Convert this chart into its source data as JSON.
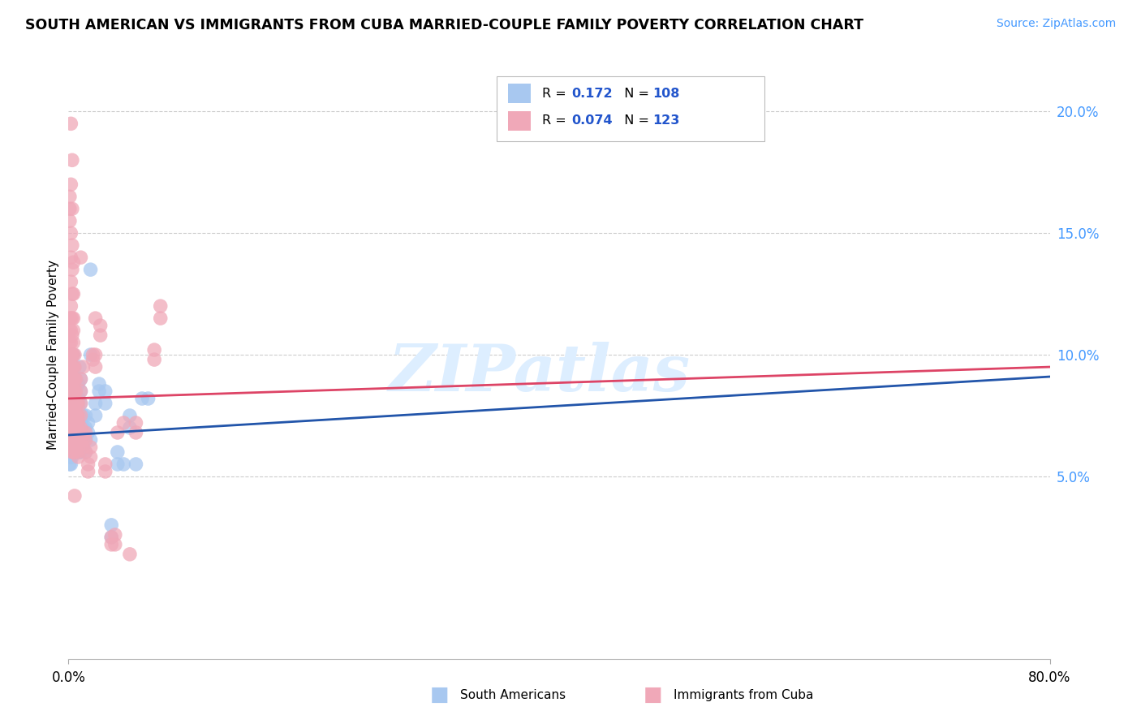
{
  "title": "SOUTH AMERICAN VS IMMIGRANTS FROM CUBA MARRIED-COUPLE FAMILY POVERTY CORRELATION CHART",
  "source": "Source: ZipAtlas.com",
  "ylabel": "Married-Couple Family Poverty",
  "yticks": [
    0.05,
    0.1,
    0.15,
    0.2
  ],
  "ytick_labels": [
    "5.0%",
    "10.0%",
    "15.0%",
    "20.0%"
  ],
  "xmin": 0.0,
  "xmax": 0.8,
  "ymin": -0.025,
  "ymax": 0.225,
  "legend_blue_r": "0.172",
  "legend_blue_n": "108",
  "legend_pink_r": "0.074",
  "legend_pink_n": "123",
  "blue_color": "#a8c8f0",
  "pink_color": "#f0a8b8",
  "blue_line_color": "#2255aa",
  "pink_line_color": "#dd4466",
  "r_value_color": "#2255cc",
  "watermark_color": "#ddeeff",
  "blue_scatter": [
    [
      0.001,
      0.063
    ],
    [
      0.001,
      0.06
    ],
    [
      0.001,
      0.058
    ],
    [
      0.001,
      0.065
    ],
    [
      0.001,
      0.055
    ],
    [
      0.001,
      0.068
    ],
    [
      0.001,
      0.07
    ],
    [
      0.002,
      0.062
    ],
    [
      0.002,
      0.065
    ],
    [
      0.002,
      0.068
    ],
    [
      0.002,
      0.07
    ],
    [
      0.002,
      0.075
    ],
    [
      0.002,
      0.058
    ],
    [
      0.002,
      0.06
    ],
    [
      0.002,
      0.055
    ],
    [
      0.003,
      0.06
    ],
    [
      0.003,
      0.062
    ],
    [
      0.003,
      0.065
    ],
    [
      0.003,
      0.068
    ],
    [
      0.003,
      0.07
    ],
    [
      0.003,
      0.072
    ],
    [
      0.003,
      0.075
    ],
    [
      0.003,
      0.078
    ],
    [
      0.003,
      0.08
    ],
    [
      0.003,
      0.085
    ],
    [
      0.003,
      0.058
    ],
    [
      0.004,
      0.06
    ],
    [
      0.004,
      0.062
    ],
    [
      0.004,
      0.065
    ],
    [
      0.004,
      0.068
    ],
    [
      0.004,
      0.07
    ],
    [
      0.004,
      0.072
    ],
    [
      0.004,
      0.075
    ],
    [
      0.004,
      0.078
    ],
    [
      0.004,
      0.08
    ],
    [
      0.004,
      0.085
    ],
    [
      0.004,
      0.088
    ],
    [
      0.004,
      0.09
    ],
    [
      0.004,
      0.095
    ],
    [
      0.004,
      0.1
    ],
    [
      0.005,
      0.06
    ],
    [
      0.005,
      0.063
    ],
    [
      0.005,
      0.065
    ],
    [
      0.005,
      0.068
    ],
    [
      0.005,
      0.07
    ],
    [
      0.005,
      0.072
    ],
    [
      0.005,
      0.075
    ],
    [
      0.005,
      0.078
    ],
    [
      0.005,
      0.08
    ],
    [
      0.005,
      0.085
    ],
    [
      0.006,
      0.062
    ],
    [
      0.006,
      0.065
    ],
    [
      0.006,
      0.068
    ],
    [
      0.006,
      0.07
    ],
    [
      0.006,
      0.072
    ],
    [
      0.006,
      0.075
    ],
    [
      0.006,
      0.078
    ],
    [
      0.006,
      0.08
    ],
    [
      0.006,
      0.085
    ],
    [
      0.006,
      0.09
    ],
    [
      0.007,
      0.06
    ],
    [
      0.007,
      0.062
    ],
    [
      0.007,
      0.065
    ],
    [
      0.007,
      0.07
    ],
    [
      0.007,
      0.075
    ],
    [
      0.007,
      0.08
    ],
    [
      0.008,
      0.06
    ],
    [
      0.008,
      0.065
    ],
    [
      0.008,
      0.068
    ],
    [
      0.008,
      0.072
    ],
    [
      0.008,
      0.075
    ],
    [
      0.008,
      0.078
    ],
    [
      0.008,
      0.082
    ],
    [
      0.008,
      0.088
    ],
    [
      0.009,
      0.06
    ],
    [
      0.009,
      0.065
    ],
    [
      0.009,
      0.07
    ],
    [
      0.009,
      0.095
    ],
    [
      0.01,
      0.06
    ],
    [
      0.01,
      0.065
    ],
    [
      0.01,
      0.07
    ],
    [
      0.01,
      0.075
    ],
    [
      0.01,
      0.08
    ],
    [
      0.01,
      0.085
    ],
    [
      0.01,
      0.09
    ],
    [
      0.012,
      0.065
    ],
    [
      0.012,
      0.07
    ],
    [
      0.012,
      0.075
    ],
    [
      0.014,
      0.06
    ],
    [
      0.014,
      0.065
    ],
    [
      0.014,
      0.07
    ],
    [
      0.014,
      0.075
    ],
    [
      0.016,
      0.068
    ],
    [
      0.016,
      0.072
    ],
    [
      0.018,
      0.065
    ],
    [
      0.018,
      0.1
    ],
    [
      0.018,
      0.135
    ],
    [
      0.022,
      0.075
    ],
    [
      0.022,
      0.08
    ],
    [
      0.025,
      0.085
    ],
    [
      0.025,
      0.088
    ],
    [
      0.03,
      0.08
    ],
    [
      0.03,
      0.085
    ],
    [
      0.035,
      0.03
    ],
    [
      0.035,
      0.025
    ],
    [
      0.04,
      0.055
    ],
    [
      0.04,
      0.06
    ],
    [
      0.045,
      0.055
    ],
    [
      0.05,
      0.07
    ],
    [
      0.05,
      0.075
    ],
    [
      0.055,
      0.055
    ],
    [
      0.06,
      0.082
    ],
    [
      0.065,
      0.082
    ]
  ],
  "pink_scatter": [
    [
      0.001,
      0.068
    ],
    [
      0.001,
      0.072
    ],
    [
      0.001,
      0.075
    ],
    [
      0.001,
      0.08
    ],
    [
      0.001,
      0.085
    ],
    [
      0.001,
      0.088
    ],
    [
      0.001,
      0.092
    ],
    [
      0.001,
      0.095
    ],
    [
      0.001,
      0.1
    ],
    [
      0.001,
      0.105
    ],
    [
      0.001,
      0.11
    ],
    [
      0.001,
      0.115
    ],
    [
      0.001,
      0.155
    ],
    [
      0.001,
      0.16
    ],
    [
      0.001,
      0.165
    ],
    [
      0.002,
      0.065
    ],
    [
      0.002,
      0.068
    ],
    [
      0.002,
      0.072
    ],
    [
      0.002,
      0.075
    ],
    [
      0.002,
      0.08
    ],
    [
      0.002,
      0.085
    ],
    [
      0.002,
      0.088
    ],
    [
      0.002,
      0.092
    ],
    [
      0.002,
      0.095
    ],
    [
      0.002,
      0.1
    ],
    [
      0.002,
      0.105
    ],
    [
      0.002,
      0.11
    ],
    [
      0.002,
      0.115
    ],
    [
      0.002,
      0.12
    ],
    [
      0.002,
      0.13
    ],
    [
      0.002,
      0.14
    ],
    [
      0.002,
      0.15
    ],
    [
      0.002,
      0.17
    ],
    [
      0.002,
      0.195
    ],
    [
      0.003,
      0.06
    ],
    [
      0.003,
      0.065
    ],
    [
      0.003,
      0.068
    ],
    [
      0.003,
      0.072
    ],
    [
      0.003,
      0.075
    ],
    [
      0.003,
      0.08
    ],
    [
      0.003,
      0.085
    ],
    [
      0.003,
      0.09
    ],
    [
      0.003,
      0.095
    ],
    [
      0.003,
      0.1
    ],
    [
      0.003,
      0.108
    ],
    [
      0.003,
      0.115
    ],
    [
      0.003,
      0.125
    ],
    [
      0.003,
      0.135
    ],
    [
      0.003,
      0.145
    ],
    [
      0.003,
      0.16
    ],
    [
      0.003,
      0.18
    ],
    [
      0.004,
      0.06
    ],
    [
      0.004,
      0.063
    ],
    [
      0.004,
      0.068
    ],
    [
      0.004,
      0.072
    ],
    [
      0.004,
      0.075
    ],
    [
      0.004,
      0.08
    ],
    [
      0.004,
      0.085
    ],
    [
      0.004,
      0.09
    ],
    [
      0.004,
      0.095
    ],
    [
      0.004,
      0.1
    ],
    [
      0.004,
      0.105
    ],
    [
      0.004,
      0.11
    ],
    [
      0.004,
      0.115
    ],
    [
      0.004,
      0.125
    ],
    [
      0.004,
      0.138
    ],
    [
      0.005,
      0.06
    ],
    [
      0.005,
      0.065
    ],
    [
      0.005,
      0.068
    ],
    [
      0.005,
      0.072
    ],
    [
      0.005,
      0.075
    ],
    [
      0.005,
      0.08
    ],
    [
      0.005,
      0.085
    ],
    [
      0.005,
      0.09
    ],
    [
      0.005,
      0.095
    ],
    [
      0.005,
      0.1
    ],
    [
      0.005,
      0.042
    ],
    [
      0.006,
      0.062
    ],
    [
      0.006,
      0.065
    ],
    [
      0.006,
      0.068
    ],
    [
      0.006,
      0.072
    ],
    [
      0.006,
      0.075
    ],
    [
      0.006,
      0.08
    ],
    [
      0.006,
      0.085
    ],
    [
      0.006,
      0.09
    ],
    [
      0.007,
      0.06
    ],
    [
      0.007,
      0.065
    ],
    [
      0.007,
      0.068
    ],
    [
      0.007,
      0.072
    ],
    [
      0.007,
      0.075
    ],
    [
      0.007,
      0.08
    ],
    [
      0.008,
      0.058
    ],
    [
      0.008,
      0.062
    ],
    [
      0.008,
      0.065
    ],
    [
      0.008,
      0.068
    ],
    [
      0.008,
      0.072
    ],
    [
      0.008,
      0.075
    ],
    [
      0.008,
      0.08
    ],
    [
      0.01,
      0.065
    ],
    [
      0.01,
      0.07
    ],
    [
      0.01,
      0.075
    ],
    [
      0.01,
      0.08
    ],
    [
      0.01,
      0.085
    ],
    [
      0.01,
      0.09
    ],
    [
      0.01,
      0.14
    ],
    [
      0.012,
      0.062
    ],
    [
      0.012,
      0.065
    ],
    [
      0.012,
      0.068
    ],
    [
      0.012,
      0.095
    ],
    [
      0.014,
      0.06
    ],
    [
      0.014,
      0.065
    ],
    [
      0.014,
      0.068
    ],
    [
      0.016,
      0.052
    ],
    [
      0.016,
      0.055
    ],
    [
      0.018,
      0.058
    ],
    [
      0.018,
      0.062
    ],
    [
      0.02,
      0.098
    ],
    [
      0.02,
      0.1
    ],
    [
      0.022,
      0.095
    ],
    [
      0.022,
      0.1
    ],
    [
      0.022,
      0.115
    ],
    [
      0.026,
      0.108
    ],
    [
      0.026,
      0.112
    ],
    [
      0.03,
      0.052
    ],
    [
      0.03,
      0.055
    ],
    [
      0.035,
      0.022
    ],
    [
      0.035,
      0.025
    ],
    [
      0.038,
      0.022
    ],
    [
      0.038,
      0.026
    ],
    [
      0.04,
      0.068
    ],
    [
      0.045,
      0.072
    ],
    [
      0.05,
      0.018
    ],
    [
      0.055,
      0.068
    ],
    [
      0.055,
      0.072
    ],
    [
      0.07,
      0.098
    ],
    [
      0.07,
      0.102
    ],
    [
      0.075,
      0.115
    ],
    [
      0.075,
      0.12
    ]
  ],
  "blue_trend": [
    0.0,
    0.8,
    0.067,
    0.091
  ],
  "pink_trend": [
    0.0,
    0.8,
    0.082,
    0.095
  ]
}
